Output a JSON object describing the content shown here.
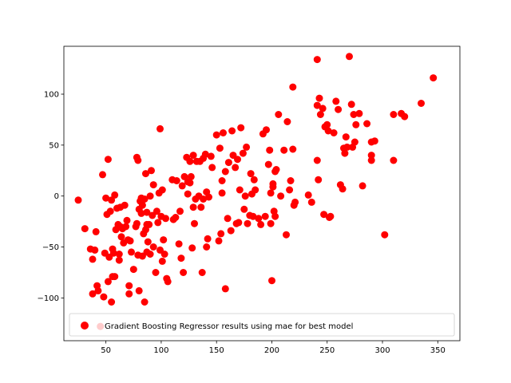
{
  "chart_data": {
    "type": "scatter",
    "title": "",
    "xlabel": "",
    "ylabel": "",
    "xlim": [
      12,
      370
    ],
    "ylim": [
      -142,
      147
    ],
    "xticks": [
      50,
      100,
      150,
      200,
      250,
      300,
      350
    ],
    "yticks": [
      -100,
      -50,
      0,
      50,
      100
    ],
    "grid": false,
    "legend": {
      "position": "lower-right"
    },
    "series": [
      {
        "name": "Gradient Boosting Regressor results using mae for best model",
        "color": "#ff0000",
        "marker": "circle",
        "points": [
          [
            25,
            -4
          ],
          [
            31,
            -32
          ],
          [
            36,
            -52
          ],
          [
            38,
            -62
          ],
          [
            38,
            -96
          ],
          [
            40,
            -53
          ],
          [
            41,
            -35
          ],
          [
            42,
            -88
          ],
          [
            43,
            -93
          ],
          [
            45,
            -128
          ],
          [
            47,
            21
          ],
          [
            48,
            -99
          ],
          [
            49,
            -56
          ],
          [
            50,
            -2
          ],
          [
            51,
            -18
          ],
          [
            52,
            36
          ],
          [
            52,
            -84
          ],
          [
            53,
            -60
          ],
          [
            54,
            -15
          ],
          [
            55,
            -4
          ],
          [
            55,
            -104
          ],
          [
            56,
            -52
          ],
          [
            56,
            -79
          ],
          [
            57,
            -56
          ],
          [
            58,
            1
          ],
          [
            58,
            -79
          ],
          [
            59,
            -33
          ],
          [
            60,
            -12
          ],
          [
            61,
            -28
          ],
          [
            62,
            -57
          ],
          [
            62,
            -63
          ],
          [
            63,
            -11
          ],
          [
            63,
            -30
          ],
          [
            64,
            -40
          ],
          [
            65,
            -32
          ],
          [
            66,
            -46
          ],
          [
            67,
            -9
          ],
          [
            68,
            -30
          ],
          [
            69,
            -24
          ],
          [
            70,
            -43
          ],
          [
            71,
            -88
          ],
          [
            71,
            -96
          ],
          [
            72,
            -44
          ],
          [
            73,
            -55
          ],
          [
            75,
            -72
          ],
          [
            77,
            -30
          ],
          [
            78,
            -27
          ],
          [
            78,
            38
          ],
          [
            79,
            35
          ],
          [
            79,
            -58
          ],
          [
            80,
            -93
          ],
          [
            80,
            -13
          ],
          [
            81,
            -5
          ],
          [
            82,
            -2
          ],
          [
            82,
            -17
          ],
          [
            83,
            -59
          ],
          [
            83,
            -9
          ],
          [
            84,
            -37
          ],
          [
            85,
            -3
          ],
          [
            85,
            -104
          ],
          [
            86,
            -33
          ],
          [
            86,
            22
          ],
          [
            87,
            -28
          ],
          [
            87,
            -16
          ],
          [
            87,
            -55
          ],
          [
            88,
            -45
          ],
          [
            89,
            -28
          ],
          [
            90,
            -57
          ],
          [
            90,
            0
          ],
          [
            91,
            25
          ],
          [
            92,
            -19
          ],
          [
            93,
            11
          ],
          [
            93,
            -50
          ],
          [
            95,
            -75
          ],
          [
            96,
            -15
          ],
          [
            97,
            -26
          ],
          [
            98,
            3
          ],
          [
            99,
            -53
          ],
          [
            99,
            66
          ],
          [
            100,
            -20
          ],
          [
            101,
            6
          ],
          [
            101,
            -64
          ],
          [
            102,
            -43
          ],
          [
            103,
            -57
          ],
          [
            104,
            -22
          ],
          [
            105,
            -81
          ],
          [
            106,
            -84
          ],
          [
            110,
            16
          ],
          [
            111,
            -23
          ],
          [
            113,
            -21
          ],
          [
            114,
            15
          ],
          [
            116,
            -47
          ],
          [
            117,
            -15
          ],
          [
            118,
            -61
          ],
          [
            119,
            10
          ],
          [
            120,
            -75
          ],
          [
            121,
            19
          ],
          [
            123,
            38
          ],
          [
            124,
            14
          ],
          [
            124,
            2
          ],
          [
            126,
            34
          ],
          [
            126,
            13
          ],
          [
            127,
            19
          ],
          [
            128,
            -51
          ],
          [
            129,
            -11
          ],
          [
            129,
            40
          ],
          [
            130,
            -27
          ],
          [
            131,
            -3
          ],
          [
            132,
            34
          ],
          [
            134,
            0
          ],
          [
            135,
            34
          ],
          [
            136,
            -11
          ],
          [
            137,
            -75
          ],
          [
            138,
            37
          ],
          [
            138,
            -3
          ],
          [
            140,
            41
          ],
          [
            141,
            -50
          ],
          [
            141,
            4
          ],
          [
            142,
            -42
          ],
          [
            143,
            -1
          ],
          [
            145,
            39
          ],
          [
            146,
            28
          ],
          [
            150,
            60
          ],
          [
            152,
            -44
          ],
          [
            153,
            47
          ],
          [
            154,
            -37
          ],
          [
            155,
            3
          ],
          [
            155,
            15
          ],
          [
            156,
            62
          ],
          [
            158,
            24
          ],
          [
            158,
            -91
          ],
          [
            160,
            -22
          ],
          [
            161,
            33
          ],
          [
            163,
            -34
          ],
          [
            164,
            64
          ],
          [
            165,
            40
          ],
          [
            167,
            28
          ],
          [
            168,
            -27
          ],
          [
            169,
            36
          ],
          [
            170,
            -26
          ],
          [
            171,
            6
          ],
          [
            172,
            67
          ],
          [
            174,
            42
          ],
          [
            175,
            -13
          ],
          [
            176,
            0
          ],
          [
            177,
            48
          ],
          [
            178,
            -27
          ],
          [
            180,
            -19
          ],
          [
            181,
            22
          ],
          [
            182,
            2
          ],
          [
            183,
            -20
          ],
          [
            184,
            16
          ],
          [
            185,
            6
          ],
          [
            188,
            -22
          ],
          [
            190,
            -28
          ],
          [
            192,
            61
          ],
          [
            194,
            -20
          ],
          [
            195,
            65
          ],
          [
            197,
            31
          ],
          [
            198,
            45
          ],
          [
            199,
            3
          ],
          [
            199,
            -27
          ],
          [
            200,
            -83
          ],
          [
            201,
            9
          ],
          [
            201,
            12
          ],
          [
            202,
            -15
          ],
          [
            203,
            -20
          ],
          [
            203,
            24
          ],
          [
            204,
            26
          ],
          [
            206,
            80
          ],
          [
            208,
            0
          ],
          [
            211,
            45
          ],
          [
            213,
            -38
          ],
          [
            214,
            73
          ],
          [
            216,
            6
          ],
          [
            217,
            15
          ],
          [
            219,
            46
          ],
          [
            219,
            107
          ],
          [
            220,
            -9
          ],
          [
            221,
            -6
          ],
          [
            233,
            1
          ],
          [
            236,
            -6
          ],
          [
            241,
            134
          ],
          [
            241,
            89
          ],
          [
            241,
            35
          ],
          [
            242,
            16
          ],
          [
            243,
            96
          ],
          [
            244,
            80
          ],
          [
            246,
            86
          ],
          [
            247,
            -18
          ],
          [
            248,
            68
          ],
          [
            250,
            70
          ],
          [
            251,
            64
          ],
          [
            252,
            -21
          ],
          [
            253,
            -20
          ],
          [
            256,
            62
          ],
          [
            258,
            93
          ],
          [
            260,
            85
          ],
          [
            262,
            11
          ],
          [
            264,
            7
          ],
          [
            265,
            47
          ],
          [
            266,
            42
          ],
          [
            267,
            58
          ],
          [
            268,
            48
          ],
          [
            270,
            137
          ],
          [
            272,
            90
          ],
          [
            273,
            48
          ],
          [
            274,
            80
          ],
          [
            275,
            53
          ],
          [
            276,
            70
          ],
          [
            279,
            81
          ],
          [
            282,
            10
          ],
          [
            286,
            71
          ],
          [
            290,
            53
          ],
          [
            290,
            40
          ],
          [
            290,
            35
          ],
          [
            293,
            54
          ],
          [
            302,
            -38
          ],
          [
            310,
            80
          ],
          [
            310,
            35
          ],
          [
            317,
            81
          ],
          [
            320,
            78
          ],
          [
            335,
            91
          ],
          [
            346,
            116
          ]
        ]
      }
    ]
  }
}
